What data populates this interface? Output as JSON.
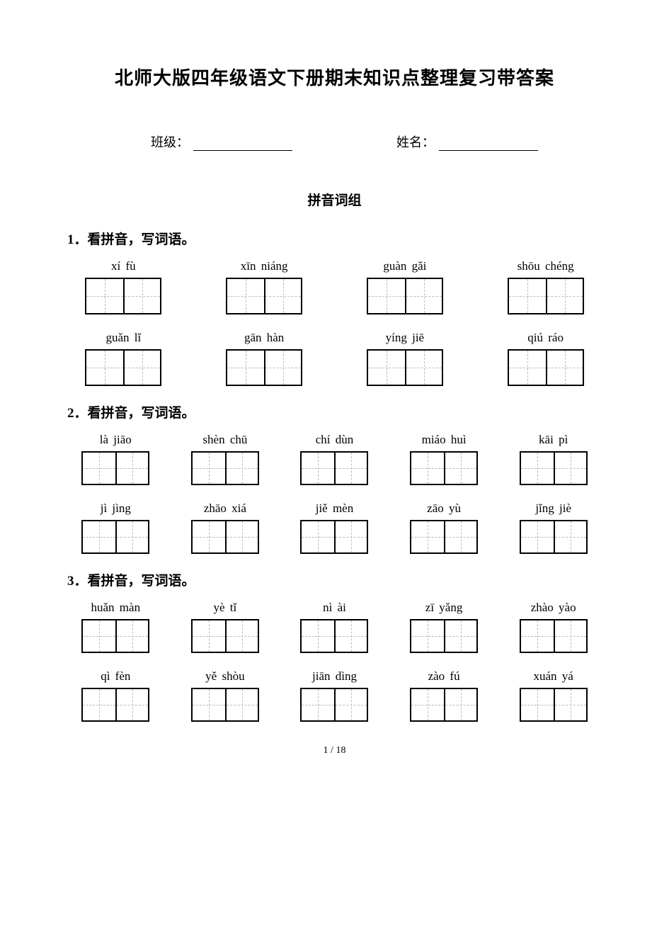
{
  "title": "北师大版四年级语文下册期末知识点整理复习带答案",
  "info": {
    "class_label": "班级：",
    "name_label": "姓名："
  },
  "section_title": "拼音词组",
  "questions": [
    {
      "heading": "1．看拼音，写词语。",
      "cols": 4,
      "size": "lg",
      "rows": [
        [
          "xí fù",
          "xīn niáng",
          "guàn gǎi",
          "shōu chéng"
        ],
        [
          "guǎn lǐ",
          "gān hàn",
          "yíng jiē",
          "qiú ráo"
        ]
      ]
    },
    {
      "heading": "2．看拼音，写词语。",
      "cols": 5,
      "size": "md",
      "rows": [
        [
          "là jiāo",
          "shèn chū",
          "chí dùn",
          "miáo huì",
          "kāi pì"
        ],
        [
          "jì jìng",
          "zhāo xiá",
          "jiě mèn",
          "zāo yù",
          "jǐng jiè"
        ]
      ]
    },
    {
      "heading": "3．看拼音，写词语。",
      "cols": 5,
      "size": "md",
      "rows": [
        [
          "huǎn màn",
          "yè tǐ",
          "nì ài",
          "zī yǎng",
          "zhào yào"
        ],
        [
          "qì fèn",
          "yě shòu",
          "jiān dìng",
          "zào fú",
          "xuán yá"
        ]
      ]
    }
  ],
  "footer": {
    "page": "1",
    "sep": " / ",
    "total": "18"
  }
}
